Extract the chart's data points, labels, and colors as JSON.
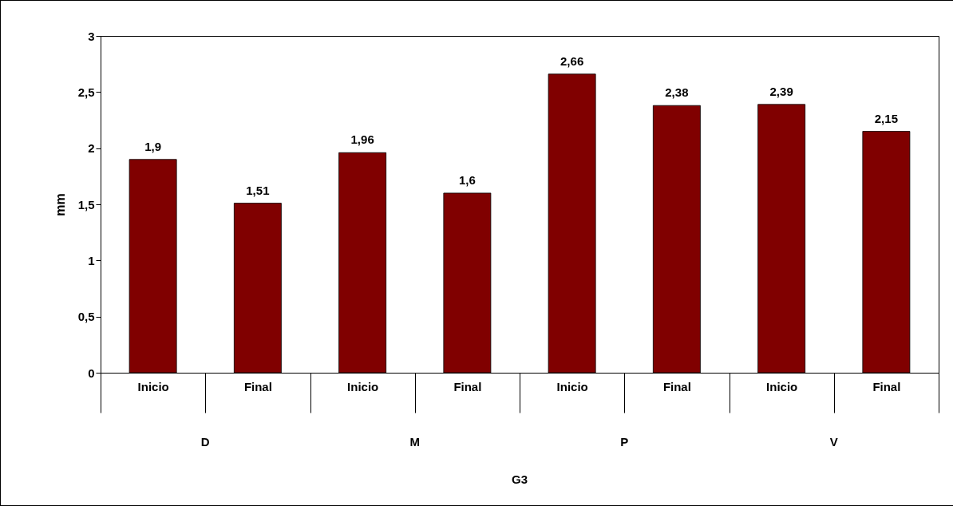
{
  "chart_data": {
    "type": "bar",
    "ylabel": "mm",
    "categories": [
      "Inicio",
      "Final",
      "Inicio",
      "Final",
      "Inicio",
      "Final",
      "Inicio",
      "Final"
    ],
    "values": [
      1.9,
      1.51,
      1.96,
      1.6,
      2.66,
      2.38,
      2.39,
      2.15
    ],
    "value_labels": [
      "1,9",
      "1,51",
      "1,96",
      "1,6",
      "2,66",
      "2,38",
      "2,39",
      "2,15"
    ],
    "color": "#800000",
    "ylim": [
      0,
      3
    ],
    "yticks": [
      0,
      {
        "value": 0.5,
        "label": "0,5"
      },
      1,
      {
        "value": 1.5,
        "label": "1,5"
      },
      2,
      {
        "value": 2.5,
        "label": "2,5"
      },
      3
    ],
    "annotations": [
      "D",
      "M",
      "P",
      "V",
      "G3"
    ]
  }
}
